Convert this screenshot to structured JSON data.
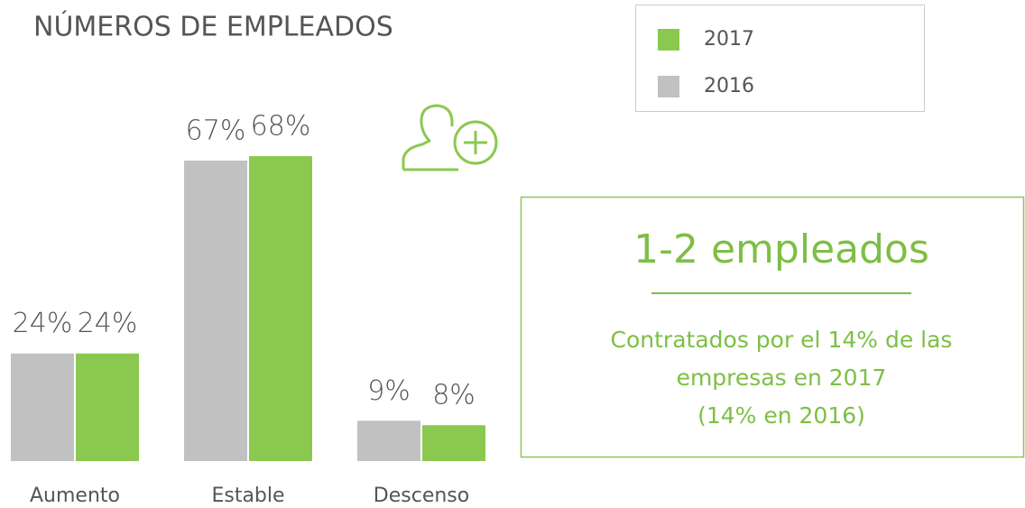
{
  "chart_data": {
    "type": "bar",
    "title": "NÚMEROS DE EMPLEADOS",
    "categories": [
      "Aumento",
      "Estable",
      "Descenso"
    ],
    "series": [
      {
        "name": "2016",
        "color": "#c1c1c1",
        "values": [
          24,
          67,
          9
        ],
        "value_labels": [
          "24%",
          "67%",
          "9%"
        ]
      },
      {
        "name": "2017",
        "color": "#8bc850",
        "values": [
          24,
          68,
          8
        ],
        "value_labels": [
          "24%",
          "68%",
          "8%"
        ]
      }
    ],
    "ylim": [
      0,
      100
    ],
    "annotations": {
      "heading": "1-2 empleados",
      "text": [
        "Contratados por el 14% de las",
        "empresas en 2017",
        "(14% en 2016)"
      ]
    }
  }
}
